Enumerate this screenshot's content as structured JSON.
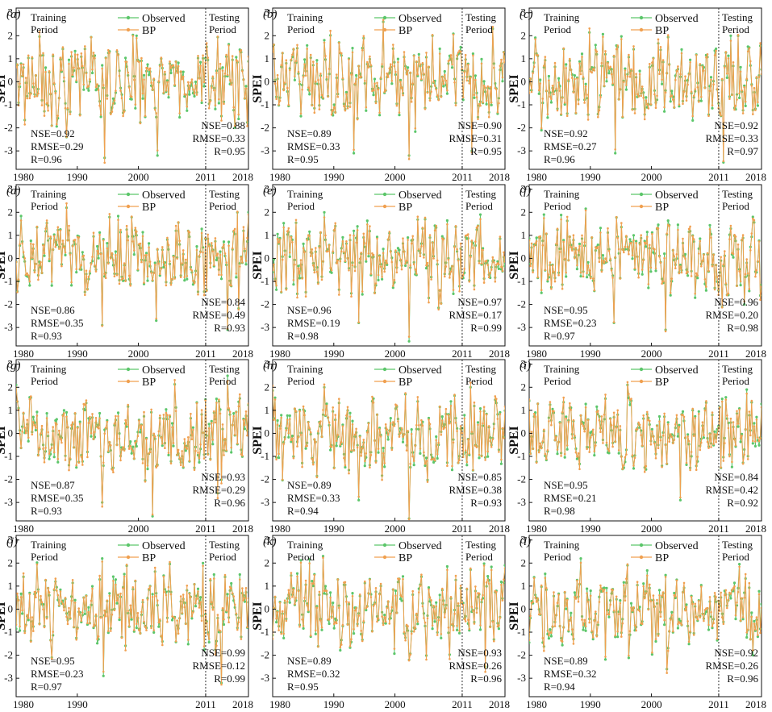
{
  "figure": {
    "y_axis_label": "SPEI",
    "legend": {
      "observed": "Observed",
      "predicted": "BP"
    },
    "period_labels": {
      "training_line1": "Training",
      "training_line2": "Period",
      "testing_line1": "Testing",
      "testing_line2": "Period"
    },
    "colors": {
      "observed": "#5cc66a",
      "predicted": "#f0a050",
      "axis": "#111111",
      "divider": "#333333"
    }
  },
  "chart_data": [
    {
      "type": "line",
      "panel": "(a)",
      "ylabel": "SPEI",
      "ylim": [
        -3.8,
        3.2
      ],
      "yticks": [
        -3,
        -2,
        -1,
        0,
        1,
        2,
        3
      ],
      "xlim": [
        1980,
        2018
      ],
      "xticks": [
        1980,
        1990,
        2000,
        2011,
        2018
      ],
      "split_year": 2011,
      "xtick_labels": [
        "1980",
        "1990",
        "2000",
        "2011",
        "2018"
      ],
      "series": [
        {
          "name": "Observed"
        },
        {
          "name": "BP"
        }
      ],
      "training": {
        "nse": "NSE=0.92",
        "rmse": "RMSE=0.29",
        "r": "R=0.96"
      },
      "testing": {
        "nse": "NSE=0.88",
        "rmse": "RMSE=0.33",
        "r": "R=0.95"
      },
      "extremes": [
        {
          "x": 1994.5,
          "y": -3.3
        },
        {
          "x": 2003.2,
          "y": -3.2
        },
        {
          "x": 1999.8,
          "y": 2.0
        },
        {
          "x": 1988.3,
          "y": -2.4
        }
      ]
    },
    {
      "type": "line",
      "panel": "(b)",
      "ylabel": "SPEI",
      "ylim": [
        -3.8,
        3.2
      ],
      "yticks": [
        -3,
        -2,
        -1,
        0,
        1,
        2,
        3
      ],
      "xlim": [
        1980,
        2018
      ],
      "xticks": [
        1980,
        1990,
        2000,
        2011,
        2018
      ],
      "split_year": 2011,
      "xtick_labels": [
        "1980",
        "1990",
        "2000",
        "2011",
        "2018"
      ],
      "series": [
        {
          "name": "Observed"
        },
        {
          "name": "BP"
        }
      ],
      "training": {
        "nse": "NSE=0.89",
        "rmse": "RMSE=0.33",
        "r": "R=0.95"
      },
      "testing": {
        "nse": "NSE=0.90",
        "rmse": "RMSE=0.31",
        "r": "R=0.95"
      },
      "extremes": [
        {
          "x": 1993.2,
          "y": -3.1
        },
        {
          "x": 2002.4,
          "y": -3.2
        },
        {
          "x": 1998.0,
          "y": 2.6
        },
        {
          "x": 2012.5,
          "y": -3.0
        },
        {
          "x": 2016.0,
          "y": 2.3
        }
      ]
    },
    {
      "type": "line",
      "panel": "(c)",
      "ylabel": "SPEI",
      "ylim": [
        -3.8,
        3.2
      ],
      "yticks": [
        -3,
        -2,
        -1,
        0,
        1,
        2,
        3
      ],
      "xlim": [
        1980,
        2018
      ],
      "xticks": [
        1980,
        1990,
        2000,
        2011,
        2018
      ],
      "split_year": 2011,
      "xtick_labels": [
        "1980",
        "1990",
        "2000",
        "2011",
        "2018"
      ],
      "series": [
        {
          "name": "Observed"
        },
        {
          "name": "BP"
        }
      ],
      "training": {
        "nse": "NSE=0.92",
        "rmse": "RMSE=0.27",
        "r": "R=0.96"
      },
      "testing": {
        "nse": "NSE=0.92",
        "rmse": "RMSE=0.33",
        "r": "R=0.97"
      },
      "extremes": [
        {
          "x": 1994.0,
          "y": -3.1
        },
        {
          "x": 2011.8,
          "y": -3.5
        },
        {
          "x": 2013.0,
          "y": 2.0
        }
      ]
    },
    {
      "type": "line",
      "panel": "(d)",
      "ylabel": "SPEI",
      "ylim": [
        -3.8,
        3.2
      ],
      "yticks": [
        -3,
        -2,
        -1,
        0,
        1,
        2,
        3
      ],
      "xlim": [
        1980,
        2018
      ],
      "xticks": [
        1980,
        1990,
        2000,
        2011,
        2018
      ],
      "split_year": 2011,
      "xtick_labels": [
        "1980",
        "1990",
        "2000",
        "2011",
        "2018"
      ],
      "series": [
        {
          "name": "Observed"
        },
        {
          "name": "BP"
        }
      ],
      "training": {
        "nse": "NSE=0.86",
        "rmse": "RMSE=0.35",
        "r": "R=0.93"
      },
      "testing": {
        "nse": "NSE=0.84",
        "rmse": "RMSE=0.49",
        "r": "R=0.93"
      },
      "extremes": [
        {
          "x": 1988.2,
          "y": 2.2
        },
        {
          "x": 1994.0,
          "y": -2.9
        },
        {
          "x": 2003.0,
          "y": -2.7
        },
        {
          "x": 2014.5,
          "y": -3.1
        },
        {
          "x": 2016.2,
          "y": 2.0
        }
      ]
    },
    {
      "type": "line",
      "panel": "(e)",
      "ylabel": "SPEI",
      "ylim": [
        -3.8,
        3.2
      ],
      "yticks": [
        -3,
        -2,
        -1,
        0,
        1,
        2,
        3
      ],
      "xlim": [
        1980,
        2018
      ],
      "xticks": [
        1980,
        1990,
        2000,
        2011,
        2018
      ],
      "split_year": 2011,
      "xtick_labels": [
        "1980",
        "1990",
        "2000",
        "2011",
        "2018"
      ],
      "series": [
        {
          "name": "Observed"
        },
        {
          "name": "BP"
        }
      ],
      "training": {
        "nse": "NSE=0.96",
        "rmse": "RMSE=0.19",
        "r": "R=0.98"
      },
      "testing": {
        "nse": "NSE=0.97",
        "rmse": "RMSE=0.17",
        "r": "R=0.99"
      },
      "extremes": [
        {
          "x": 2002.3,
          "y": -3.6
        },
        {
          "x": 1994.0,
          "y": -2.8
        },
        {
          "x": 1988.5,
          "y": 2.0
        },
        {
          "x": 2014.0,
          "y": 1.9
        }
      ]
    },
    {
      "type": "line",
      "panel": "(f)",
      "ylabel": "SPEI",
      "ylim": [
        -3.8,
        3.2
      ],
      "yticks": [
        -3,
        -2,
        -1,
        0,
        1,
        2,
        3
      ],
      "xlim": [
        1980,
        2018
      ],
      "xticks": [
        1980,
        1990,
        2000,
        2011,
        2018
      ],
      "split_year": 2011,
      "xtick_labels": [
        "1980",
        "1990",
        "2000",
        "2011",
        "2018"
      ],
      "series": [
        {
          "name": "Observed"
        },
        {
          "name": "BP"
        }
      ],
      "training": {
        "nse": "NSE=0.95",
        "rmse": "RMSE=0.23",
        "r": "R=0.97"
      },
      "testing": {
        "nse": "NSE=0.96",
        "rmse": "RMSE=0.20",
        "r": "R=0.98"
      },
      "extremes": [
        {
          "x": 2002.4,
          "y": -3.1
        },
        {
          "x": 1993.8,
          "y": -2.8
        },
        {
          "x": 1982.5,
          "y": 1.9
        },
        {
          "x": 2016.5,
          "y": 1.8
        }
      ]
    },
    {
      "type": "line",
      "panel": "(g)",
      "ylabel": "SPEI",
      "ylim": [
        -3.8,
        3.2
      ],
      "yticks": [
        -3,
        -2,
        -1,
        0,
        1,
        2,
        3
      ],
      "xlim": [
        1980,
        2018
      ],
      "xticks": [
        1980,
        2000,
        2011,
        2018
      ],
      "split_year": 2011,
      "xtick_labels": [
        "1980",
        "2000",
        "2011",
        "2018"
      ],
      "series": [
        {
          "name": "Observed"
        },
        {
          "name": "BP"
        }
      ],
      "training": {
        "nse": "NSE=0.87",
        "rmse": "RMSE=0.35",
        "r": "R=0.93"
      },
      "testing": {
        "nse": "NSE=0.93",
        "rmse": "RMSE=0.29",
        "r": "R=0.96"
      },
      "extremes": [
        {
          "x": 2002.3,
          "y": -3.6
        },
        {
          "x": 1994.0,
          "y": -3.0
        },
        {
          "x": 2013.0,
          "y": -2.6
        },
        {
          "x": 2014.5,
          "y": 2.5
        }
      ]
    },
    {
      "type": "line",
      "panel": "(h)",
      "ylabel": "SPEI",
      "ylim": [
        -3.8,
        3.2
      ],
      "yticks": [
        -3,
        -2,
        -1,
        0,
        1,
        2,
        3
      ],
      "xlim": [
        1980,
        2018
      ],
      "xticks": [
        1980,
        1990,
        2000,
        2011,
        2018
      ],
      "split_year": 2011,
      "xtick_labels": [
        "1980",
        "1990",
        "2000",
        "2011",
        "2018"
      ],
      "series": [
        {
          "name": "Observed"
        },
        {
          "name": "BP"
        }
      ],
      "training": {
        "nse": "NSE=0.89",
        "rmse": "RMSE=0.33",
        "r": "R=0.94"
      },
      "testing": {
        "nse": "NSE=0.85",
        "rmse": "RMSE=0.38",
        "r": "R=0.93"
      },
      "extremes": [
        {
          "x": 2002.3,
          "y": -3.7
        },
        {
          "x": 1994.0,
          "y": -2.9
        },
        {
          "x": 1988.5,
          "y": 2.0
        },
        {
          "x": 2012.3,
          "y": 2.0
        }
      ]
    },
    {
      "type": "line",
      "panel": "(i)",
      "ylabel": "SPEI",
      "ylim": [
        -3.8,
        3.2
      ],
      "yticks": [
        -3,
        -2,
        -1,
        0,
        1,
        2,
        3
      ],
      "xlim": [
        1980,
        2018
      ],
      "xticks": [
        1980,
        1990,
        2000,
        2011,
        2018
      ],
      "split_year": 2011,
      "xtick_labels": [
        "1980",
        "1990",
        "2000",
        "2011",
        "2018"
      ],
      "series": [
        {
          "name": "Observed"
        },
        {
          "name": "BP"
        }
      ],
      "training": {
        "nse": "NSE=0.95",
        "rmse": "RMSE=0.21",
        "r": "R=0.98"
      },
      "testing": {
        "nse": "NSE=0.84",
        "rmse": "RMSE=0.42",
        "r": "R=0.92"
      },
      "extremes": [
        {
          "x": 2004.8,
          "y": -2.9
        },
        {
          "x": 1996.0,
          "y": 2.1
        },
        {
          "x": 2015.5,
          "y": 1.9
        }
      ]
    },
    {
      "type": "line",
      "panel": "(j)",
      "ylabel": "SPEI",
      "ylim": [
        -3.8,
        3.2
      ],
      "yticks": [
        -3,
        -2,
        -1,
        0,
        1,
        2,
        3
      ],
      "xlim": [
        1980,
        2018
      ],
      "xticks": [
        1980,
        1990,
        2011,
        2018
      ],
      "split_year": 2011,
      "xtick_labels": [
        "1980",
        "1990",
        "2011",
        "2018"
      ],
      "series": [
        {
          "name": "Observed"
        },
        {
          "name": "BP"
        }
      ],
      "training": {
        "nse": "NSE=0.95",
        "rmse": "RMSE=0.23",
        "r": "R=0.97"
      },
      "testing": {
        "nse": "NSE=0.99",
        "rmse": "RMSE=0.12",
        "r": "R=0.99"
      },
      "extremes": [
        {
          "x": 1994.2,
          "y": -2.9
        },
        {
          "x": 2013.5,
          "y": -3.2
        },
        {
          "x": 1994.0,
          "y": 2.2
        },
        {
          "x": 2010.5,
          "y": 2.0
        }
      ]
    },
    {
      "type": "line",
      "panel": "(k)",
      "ylabel": "SPEI",
      "ylim": [
        -3.8,
        3.2
      ],
      "yticks": [
        -3,
        -2,
        -1,
        0,
        1,
        2,
        3
      ],
      "xlim": [
        1980,
        2018
      ],
      "xticks": [
        1980,
        1990,
        2000,
        2011,
        2018
      ],
      "split_year": 2011,
      "xtick_labels": [
        "1980",
        "1990",
        "2000",
        "2011",
        "2018"
      ],
      "series": [
        {
          "name": "Observed"
        },
        {
          "name": "BP"
        }
      ],
      "training": {
        "nse": "NSE=0.89",
        "rmse": "RMSE=0.32",
        "r": "R=0.95"
      },
      "testing": {
        "nse": "NSE=0.93",
        "rmse": "RMSE=0.26",
        "r": "R=0.96"
      },
      "extremes": [
        {
          "x": 2002.4,
          "y": -2.2
        },
        {
          "x": 1988.2,
          "y": 2.3
        },
        {
          "x": 2014.8,
          "y": -2.5
        },
        {
          "x": 2018.0,
          "y": 1.9
        }
      ]
    },
    {
      "type": "line",
      "panel": "(l)",
      "ylabel": "SPEI",
      "ylim": [
        -3.8,
        3.2
      ],
      "yticks": [
        -3,
        -2,
        -1,
        0,
        1,
        2,
        3
      ],
      "xlim": [
        1980,
        2018
      ],
      "xticks": [
        1980,
        1990,
        2000,
        2011,
        2018
      ],
      "split_year": 2011,
      "xtick_labels": [
        "1980",
        "1990",
        "2000",
        "2011",
        "2018"
      ],
      "series": [
        {
          "name": "Observed"
        },
        {
          "name": "BP"
        }
      ],
      "training": {
        "nse": "NSE=0.89",
        "rmse": "RMSE=0.32",
        "r": "R=0.94"
      },
      "testing": {
        "nse": "NSE=0.92",
        "rmse": "RMSE=0.26",
        "r": "R=0.96"
      },
      "extremes": [
        {
          "x": 2002.5,
          "y": -2.6
        },
        {
          "x": 1988.5,
          "y": 2.2
        },
        {
          "x": 1996.0,
          "y": 1.9
        },
        {
          "x": 2016.5,
          "y": -2.0
        }
      ]
    }
  ]
}
